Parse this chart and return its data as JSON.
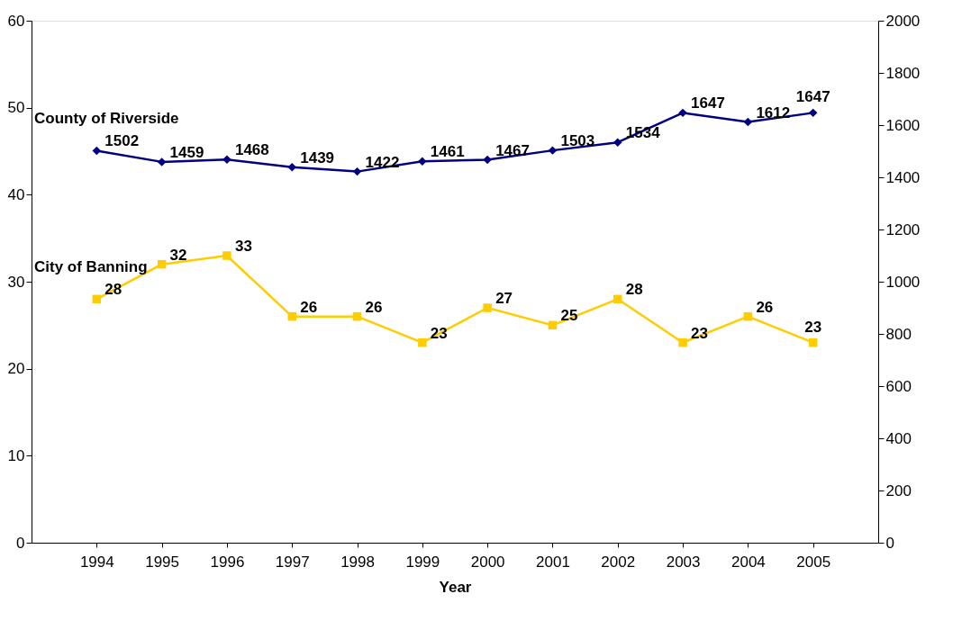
{
  "chart_data": {
    "type": "line",
    "xlabel": "Year",
    "categories": [
      "1994",
      "1995",
      "1996",
      "1997",
      "1998",
      "1999",
      "2000",
      "2001",
      "2002",
      "2003",
      "2004",
      "2005"
    ],
    "series": [
      {
        "name": "County of Riverside",
        "color": "#000080",
        "axis": "y2",
        "marker": "diamond",
        "values": [
          1502,
          1459,
          1468,
          1439,
          1422,
          1461,
          1467,
          1503,
          1534,
          1647,
          1612,
          1647
        ]
      },
      {
        "name": "City of Banning",
        "color": "#ffcc00",
        "marker": "square",
        "values": [
          28,
          32,
          33,
          26,
          26,
          23,
          27,
          25,
          28,
          23,
          26,
          23
        ]
      }
    ],
    "ylim": [
      0,
      60
    ],
    "yticks": [
      0,
      10,
      20,
      30,
      40,
      50,
      60
    ],
    "y2lim": [
      0,
      2000
    ],
    "y2ticks": [
      0,
      200,
      400,
      600,
      800,
      1000,
      1200,
      1400,
      1600,
      1800,
      2000
    ],
    "data_labels": true,
    "grid": false,
    "legend": false
  }
}
